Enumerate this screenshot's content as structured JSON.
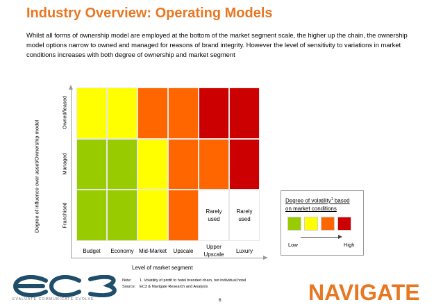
{
  "title": "Industry Overview: Operating Models",
  "intro": "Whilst all forms of ownership model are employed at the bottom of the market segment scale, the higher up the chain, the ownership model options narrow to owned and managed for reasons of brand integrity. However the level of sensitivity to variations in market conditions increases with both degree of ownership and market segment",
  "chart": {
    "y_axis_label": "Degree of influence over asset/Ownership model",
    "x_axis_label": "Level of market segment",
    "rows": [
      {
        "label": "Owned/leased",
        "cells": [
          {
            "color": "#ffff00",
            "text": ""
          },
          {
            "color": "#ffff00",
            "text": ""
          },
          {
            "color": "#ff6600",
            "text": ""
          },
          {
            "color": "#ff6600",
            "text": ""
          },
          {
            "color": "#cc0000",
            "text": ""
          },
          {
            "color": "#cc0000",
            "text": ""
          }
        ]
      },
      {
        "label": "Managed",
        "cells": [
          {
            "color": "#99cc00",
            "text": ""
          },
          {
            "color": "#99cc00",
            "text": ""
          },
          {
            "color": "#ffff00",
            "text": ""
          },
          {
            "color": "#ff6600",
            "text": ""
          },
          {
            "color": "#ff6600",
            "text": ""
          },
          {
            "color": "#cc0000",
            "text": ""
          }
        ]
      },
      {
        "label": "Franchised",
        "cells": [
          {
            "color": "#99cc00",
            "text": ""
          },
          {
            "color": "#99cc00",
            "text": ""
          },
          {
            "color": "#ffff00",
            "text": ""
          },
          {
            "color": "#ff6600",
            "text": ""
          },
          {
            "color": "#ffffff",
            "text": "Rarely used"
          },
          {
            "color": "#ffffff",
            "text": "Rarely used"
          }
        ]
      }
    ],
    "columns": [
      "Budget",
      "Economy",
      "Mid-Market",
      "Upscale",
      "Upper Upscale",
      "Luxury"
    ]
  },
  "legend": {
    "title_line1": "Degree of volatility",
    "title_sup": "1",
    "title_suffix": " based",
    "title_line2": "on market conditions",
    "swatch_colors": [
      "#99cc00",
      "#ffff00",
      "#ff6600",
      "#cc0000"
    ],
    "low_label": "Low",
    "high_label": "High"
  },
  "notes": {
    "note_key": "Note:",
    "note_text": "1. Volatility of profit to hotel branded chain, not individual hotel",
    "source_key": "Source:",
    "source_text": "EC3 & Navigate Research and Analysis"
  },
  "page_number": "6",
  "logos": {
    "ec3_text": "ec3",
    "ec3_tagline": "EVALUATE COMMUNICATE EVOLVE",
    "navigate_text": "NAVIGATE",
    "ec3_color": "#1f4e6b",
    "navigate_color": "#e87722"
  }
}
